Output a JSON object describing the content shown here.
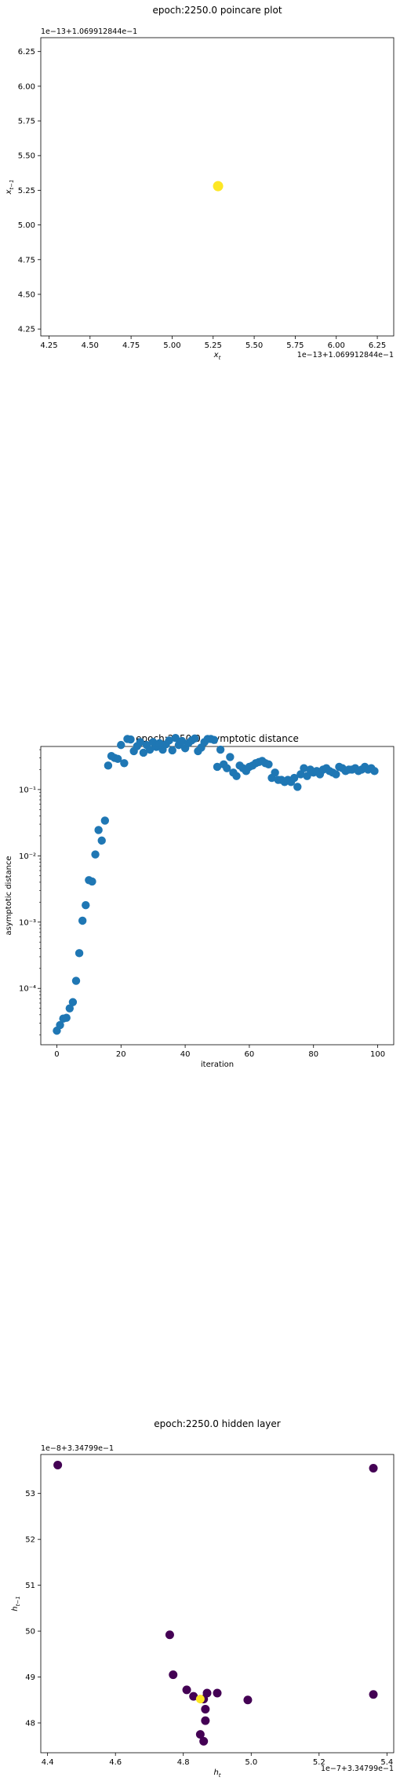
{
  "chart_data": [
    {
      "type": "scatter",
      "title": "epoch:2250.0 poincare plot",
      "xlabel": "x_t",
      "ylabel": "x_{t-1}",
      "x_offset_text": "1e−13+1.069912844e−1",
      "y_offset_text": "1e−13+1.069912844e−1",
      "xlim": [
        4.2,
        6.35
      ],
      "ylim": [
        4.2,
        6.35
      ],
      "xticks": [
        "4.25",
        "4.50",
        "4.75",
        "5.00",
        "5.25",
        "5.50",
        "5.75",
        "6.00",
        "6.25"
      ],
      "yticks": [
        "4.25",
        "4.50",
        "4.75",
        "5.00",
        "5.25",
        "5.50",
        "5.75",
        "6.00",
        "6.25"
      ],
      "point_color": "#fde725",
      "points": [
        {
          "x": 5.28,
          "y": 5.28
        }
      ]
    },
    {
      "type": "scatter",
      "title": "epoch:2250.0 asymptotic distance",
      "xlabel": "iteration",
      "ylabel": "asymptotic distance",
      "yscale": "log",
      "xlim": [
        -5,
        105
      ],
      "ylim_log10": [
        -4.85,
        -0.35
      ],
      "xticks": [
        "0",
        "20",
        "40",
        "60",
        "80",
        "100"
      ],
      "yticks": [
        "10⁻⁴",
        "10⁻³",
        "10⁻²",
        "10⁻¹"
      ],
      "point_color": "#1f77b4",
      "x": [
        0,
        1,
        2,
        3,
        4,
        5,
        6,
        7,
        8,
        9,
        10,
        11,
        12,
        13,
        14,
        15,
        16,
        17,
        18,
        19,
        20,
        21,
        22,
        23,
        24,
        25,
        26,
        27,
        28,
        29,
        30,
        31,
        32,
        33,
        34,
        35,
        36,
        37,
        38,
        39,
        40,
        41,
        42,
        43,
        44,
        45,
        46,
        47,
        48,
        49,
        50,
        51,
        52,
        53,
        54,
        55,
        56,
        57,
        58,
        59,
        60,
        61,
        62,
        63,
        64,
        65,
        66,
        67,
        68,
        69,
        70,
        71,
        72,
        73,
        74,
        75,
        76,
        77,
        78,
        79,
        80,
        81,
        82,
        83,
        84,
        85,
        86,
        87,
        88,
        89,
        90,
        91,
        92,
        93,
        94,
        95,
        96,
        97,
        98,
        99
      ],
      "y": [
        2.3e-05,
        2.8e-05,
        3.5e-05,
        3.6e-05,
        5e-05,
        6.2e-05,
        0.00013,
        0.00034,
        0.00105,
        0.0018,
        0.0043,
        0.0041,
        0.0105,
        0.0245,
        0.017,
        0.034,
        0.23,
        0.32,
        0.3,
        0.29,
        0.47,
        0.25,
        0.58,
        0.57,
        0.38,
        0.45,
        0.52,
        0.36,
        0.47,
        0.4,
        0.52,
        0.44,
        0.5,
        0.4,
        0.48,
        0.55,
        0.39,
        0.6,
        0.47,
        0.54,
        0.42,
        0.5,
        0.55,
        0.59,
        0.38,
        0.43,
        0.52,
        0.58,
        0.58,
        0.56,
        0.22,
        0.4,
        0.24,
        0.21,
        0.31,
        0.18,
        0.16,
        0.23,
        0.21,
        0.19,
        0.22,
        0.23,
        0.25,
        0.26,
        0.27,
        0.25,
        0.24,
        0.15,
        0.18,
        0.14,
        0.14,
        0.13,
        0.14,
        0.13,
        0.15,
        0.11,
        0.17,
        0.21,
        0.16,
        0.2,
        0.18,
        0.19,
        0.17,
        0.2,
        0.21,
        0.19,
        0.18,
        0.17,
        0.22,
        0.21,
        0.19,
        0.2,
        0.2,
        0.21,
        0.19,
        0.2,
        0.22,
        0.2,
        0.21,
        0.19
      ]
    },
    {
      "type": "scatter",
      "title": "epoch:2250.0 hidden layer",
      "xlabel": "h_t",
      "ylabel": "h_{t-1}",
      "x_offset_text": "1e−7+3.34799e−1",
      "y_offset_text": "1e−8+3.34799e−1",
      "xlim": [
        4.38,
        5.42
      ],
      "ylim": [
        47.35,
        53.85
      ],
      "xticks": [
        "4.4",
        "4.6",
        "4.8",
        "5.0",
        "5.2",
        "5.4"
      ],
      "yticks": [
        "48",
        "49",
        "50",
        "51",
        "52",
        "53"
      ],
      "colors": {
        "early": "#440154",
        "final": "#fde725"
      },
      "points": [
        {
          "x": 4.43,
          "y": 53.62,
          "c": "early"
        },
        {
          "x": 5.36,
          "y": 53.55,
          "c": "early"
        },
        {
          "x": 4.76,
          "y": 49.92,
          "c": "early"
        },
        {
          "x": 4.77,
          "y": 49.05,
          "c": "early"
        },
        {
          "x": 4.81,
          "y": 48.72,
          "c": "early"
        },
        {
          "x": 4.83,
          "y": 48.58,
          "c": "early"
        },
        {
          "x": 4.86,
          "y": 48.52,
          "c": "early"
        },
        {
          "x": 4.87,
          "y": 48.65,
          "c": "early"
        },
        {
          "x": 4.865,
          "y": 48.3,
          "c": "early"
        },
        {
          "x": 4.865,
          "y": 48.05,
          "c": "early"
        },
        {
          "x": 4.85,
          "y": 47.75,
          "c": "early"
        },
        {
          "x": 4.86,
          "y": 47.6,
          "c": "early"
        },
        {
          "x": 4.9,
          "y": 48.65,
          "c": "early"
        },
        {
          "x": 4.99,
          "y": 48.5,
          "c": "early"
        },
        {
          "x": 5.36,
          "y": 48.62,
          "c": "early"
        },
        {
          "x": 4.85,
          "y": 48.52,
          "c": "final"
        }
      ]
    }
  ]
}
